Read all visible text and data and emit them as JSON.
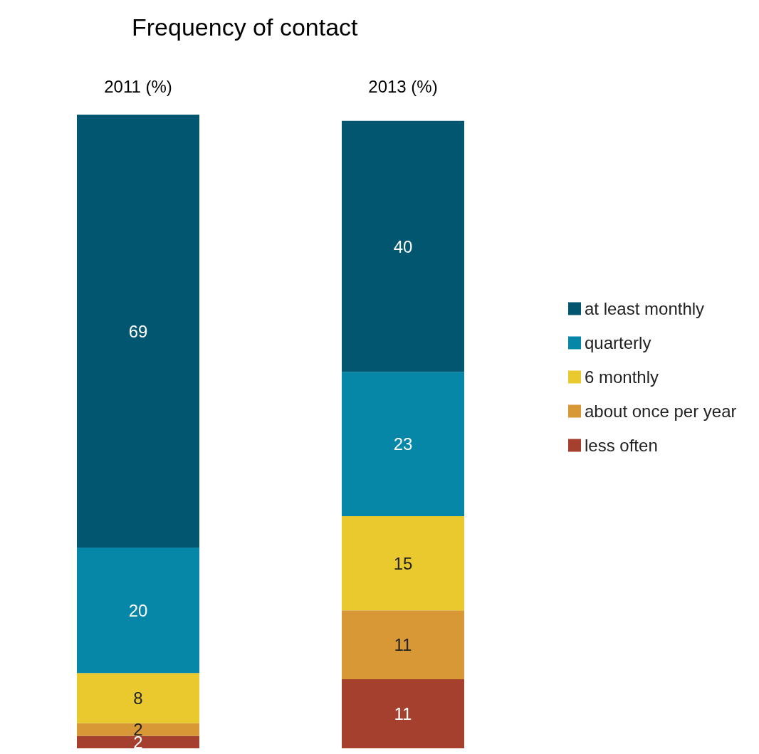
{
  "chart_data": {
    "type": "bar",
    "title": "Frequency of contact",
    "categories": [
      "2011 (%)",
      "2013 (%)"
    ],
    "stacked": true,
    "data_labels": true,
    "legend": "right",
    "series": [
      {
        "name": "less often",
        "color": "#a5402e",
        "values": [
          2,
          11
        ]
      },
      {
        "name": "about once per year",
        "color": "#d89836",
        "values": [
          2,
          11
        ]
      },
      {
        "name": "6 monthly",
        "color": "#e9c92d",
        "values": [
          8,
          15
        ]
      },
      {
        "name": "quarterly",
        "color": "#0787a8",
        "values": [
          20,
          23
        ]
      },
      {
        "name": "at least monthly",
        "color": "#03566f",
        "values": [
          69,
          40
        ]
      }
    ]
  }
}
